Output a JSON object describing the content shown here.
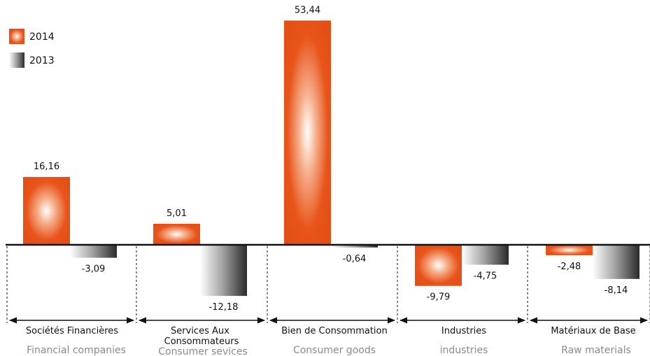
{
  "chart_data": {
    "type": "bar",
    "title": "",
    "xlabel": "",
    "ylabel": "",
    "ylim": [
      -13,
      56
    ],
    "grid": false,
    "legend_position": "top-left",
    "categories": [
      {
        "label": "Sociétés Financières",
        "sublabel": "Financial companies"
      },
      {
        "label": "Services Aux Consommateurs",
        "sublabel": "Consumer sevices"
      },
      {
        "label": "Bien de Consommation",
        "sublabel": "Consumer goods"
      },
      {
        "label": "Industries",
        "sublabel": "industries"
      },
      {
        "label": "Matériaux de Base",
        "sublabel": "Raw materials"
      }
    ],
    "series": [
      {
        "name": "2014",
        "values": [
          16.16,
          5.01,
          53.44,
          -9.79,
          -2.48
        ],
        "labels": [
          "16,16",
          "5,01",
          "53,44",
          "-9,79",
          "-2,48"
        ],
        "color": "#e8541a"
      },
      {
        "name": "2013",
        "values": [
          -3.09,
          -12.18,
          -0.64,
          -4.75,
          -8.14
        ],
        "labels": [
          "-3,09",
          "-12,18",
          "-0,64",
          "-4,75",
          "-8,14"
        ],
        "color": "#2e2e2e"
      }
    ]
  }
}
